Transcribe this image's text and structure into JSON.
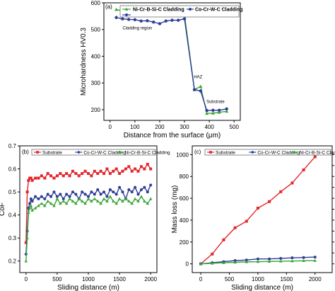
{
  "chart_data": [
    {
      "type": "line",
      "panel": "(a)",
      "xlabel": "Distance from the surface (μm)",
      "ylabel": "Microhardness HV0.3",
      "xlim": [
        -25,
        525
      ],
      "ylim": [
        160,
        600
      ],
      "xticks": [
        0,
        100,
        200,
        300,
        400,
        500
      ],
      "yticks": [
        200,
        300,
        400,
        500,
        600
      ],
      "legend_position": "top-left",
      "annotations": [
        "Cladding region",
        "HAZ",
        "Substrate"
      ],
      "series": [
        {
          "name": "Ni-Cr-B-Si-C Cladding",
          "color": "#3aa637",
          "marker": "triangle",
          "x": [
            25,
            50,
            75,
            100,
            125,
            150,
            175,
            200,
            225,
            250,
            275,
            300,
            340,
            365,
            390,
            415,
            440,
            470
          ],
          "y": [
            575,
            570,
            568,
            565,
            560,
            562,
            558,
            555,
            560,
            553,
            552,
            555,
            275,
            287,
            186,
            187,
            190,
            194
          ]
        },
        {
          "name": "Co-Cr-W-C Cladding",
          "color": "#2e3d98",
          "marker": "circle",
          "x": [
            25,
            50,
            75,
            100,
            125,
            150,
            175,
            200,
            225,
            250,
            275,
            300,
            340,
            365,
            390,
            415,
            440,
            470
          ],
          "y": [
            545,
            540,
            538,
            537,
            532,
            533,
            528,
            522,
            532,
            535,
            535,
            540,
            275,
            270,
            197,
            198,
            198,
            203
          ]
        }
      ]
    },
    {
      "type": "line",
      "panel": "(b)",
      "xlabel": "Sliding distance (m)",
      "ylabel": "CoF",
      "xlim": [
        -100,
        2100
      ],
      "ylim": [
        0.15,
        0.7
      ],
      "xticks": [
        0,
        500,
        1000,
        1500,
        2000
      ],
      "yticks": [
        0.2,
        0.3,
        0.4,
        0.5,
        0.6,
        0.7
      ],
      "legend_position": "top",
      "series": [
        {
          "name": "Substrate",
          "color": "#e3262c",
          "marker": "square",
          "x": [
            0,
            20,
            40,
            60,
            80,
            100,
            150,
            200,
            250,
            300,
            350,
            400,
            450,
            500,
            550,
            600,
            650,
            700,
            750,
            800,
            850,
            900,
            950,
            1000,
            1050,
            1100,
            1150,
            1200,
            1250,
            1300,
            1350,
            1400,
            1450,
            1500,
            1550,
            1600,
            1650,
            1700,
            1750,
            1800,
            1850,
            1900,
            1950,
            2000
          ],
          "y": [
            0.28,
            0.5,
            0.55,
            0.56,
            0.56,
            0.55,
            0.56,
            0.56,
            0.57,
            0.56,
            0.58,
            0.57,
            0.56,
            0.57,
            0.58,
            0.57,
            0.58,
            0.57,
            0.59,
            0.58,
            0.57,
            0.58,
            0.59,
            0.58,
            0.57,
            0.59,
            0.58,
            0.59,
            0.58,
            0.6,
            0.58,
            0.59,
            0.6,
            0.58,
            0.59,
            0.6,
            0.61,
            0.59,
            0.6,
            0.59,
            0.61,
            0.6,
            0.62,
            0.6
          ]
        },
        {
          "name": "Co-Cr-W-C Cladding",
          "color": "#2e3d98",
          "marker": "circle",
          "x": [
            0,
            20,
            40,
            60,
            80,
            100,
            150,
            200,
            250,
            300,
            350,
            400,
            450,
            500,
            550,
            600,
            650,
            700,
            750,
            800,
            850,
            900,
            950,
            1000,
            1050,
            1100,
            1150,
            1200,
            1250,
            1300,
            1350,
            1400,
            1450,
            1500,
            1550,
            1600,
            1650,
            1700,
            1750,
            1800,
            1850,
            1900,
            1950,
            2000
          ],
          "y": [
            0.23,
            0.33,
            0.43,
            0.45,
            0.47,
            0.46,
            0.48,
            0.47,
            0.48,
            0.47,
            0.49,
            0.48,
            0.5,
            0.48,
            0.49,
            0.47,
            0.49,
            0.48,
            0.5,
            0.49,
            0.47,
            0.5,
            0.49,
            0.48,
            0.5,
            0.49,
            0.51,
            0.49,
            0.5,
            0.48,
            0.51,
            0.5,
            0.49,
            0.52,
            0.5,
            0.47,
            0.51,
            0.5,
            0.52,
            0.49,
            0.51,
            0.52,
            0.5,
            0.53
          ]
        },
        {
          "name": "Ni-Cr-B-Si-C Cladding",
          "color": "#3aa637",
          "marker": "triangle",
          "x": [
            0,
            20,
            40,
            60,
            80,
            100,
            150,
            200,
            250,
            300,
            350,
            400,
            450,
            500,
            550,
            600,
            650,
            700,
            750,
            800,
            850,
            900,
            950,
            1000,
            1050,
            1100,
            1150,
            1200,
            1250,
            1300,
            1350,
            1400,
            1450,
            1500,
            1550,
            1600,
            1650,
            1700,
            1750,
            1800,
            1850,
            1900,
            1950,
            2000
          ],
          "y": [
            0.2,
            0.3,
            0.41,
            0.43,
            0.44,
            0.42,
            0.43,
            0.44,
            0.45,
            0.44,
            0.46,
            0.45,
            0.44,
            0.47,
            0.45,
            0.46,
            0.45,
            0.47,
            0.46,
            0.45,
            0.47,
            0.46,
            0.45,
            0.47,
            0.46,
            0.47,
            0.46,
            0.45,
            0.47,
            0.46,
            0.48,
            0.46,
            0.45,
            0.47,
            0.46,
            0.47,
            0.46,
            0.45,
            0.47,
            0.46,
            0.48,
            0.46,
            0.45,
            0.47
          ]
        }
      ]
    },
    {
      "type": "line",
      "panel": "(c)",
      "xlabel": "Sliding distance (m)",
      "ylabel": "Mass loss (mg)",
      "xlim": [
        -150,
        2300
      ],
      "ylim": [
        -80,
        1080
      ],
      "xticks": [
        0,
        500,
        1000,
        1500,
        2000
      ],
      "yticks": [
        0,
        200,
        400,
        600,
        800,
        1000
      ],
      "legend_position": "top",
      "series": [
        {
          "name": "Substrate",
          "color": "#e3262c",
          "marker": "square",
          "x": [
            0,
            200,
            400,
            600,
            800,
            1000,
            1200,
            1400,
            1600,
            1800,
            2000
          ],
          "y": [
            0,
            90,
            220,
            330,
            390,
            510,
            570,
            660,
            740,
            860,
            980
          ]
        },
        {
          "name": "Co-Cr-W-C Cladding",
          "color": "#2e3d98",
          "marker": "circle",
          "x": [
            0,
            200,
            400,
            600,
            800,
            1000,
            1200,
            1400,
            1600,
            1800,
            2000
          ],
          "y": [
            0,
            10,
            20,
            30,
            35,
            45,
            45,
            50,
            55,
            58,
            62
          ]
        },
        {
          "name": "Ni-Cr-B-Si-C Cladding",
          "color": "#3aa637",
          "marker": "triangle",
          "x": [
            0,
            200,
            400,
            600,
            800,
            1000,
            1200,
            1400,
            1600,
            1800,
            2000
          ],
          "y": [
            0,
            5,
            10,
            14,
            18,
            20,
            22,
            24,
            26,
            28,
            30
          ]
        }
      ]
    }
  ]
}
